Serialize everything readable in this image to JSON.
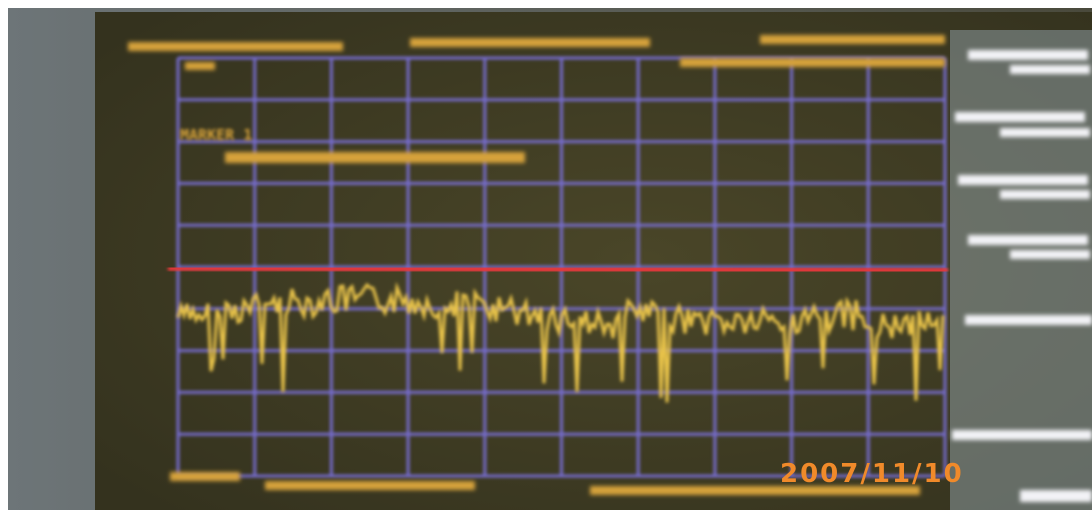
{
  "screen": {
    "marker_label": "MARKER 1"
  },
  "date_stamp": "2007/11/10"
}
